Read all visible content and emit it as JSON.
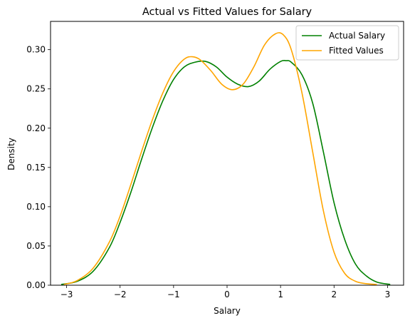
{
  "chart_data": {
    "type": "line",
    "title": "Actual vs Fitted Values for Salary",
    "xlabel": "Salary",
    "ylabel": "Density",
    "xlim": [
      -3.3,
      3.3
    ],
    "ylim": [
      0.0,
      0.336
    ],
    "x_ticks": [
      -3,
      -2,
      -1,
      0,
      1,
      2,
      3
    ],
    "x_tick_labels": [
      "−3",
      "−2",
      "−1",
      "0",
      "1",
      "2",
      "3"
    ],
    "y_ticks": [
      0.0,
      0.05,
      0.1,
      0.15,
      0.2,
      0.25,
      0.3
    ],
    "y_tick_labels": [
      "0.00",
      "0.05",
      "0.10",
      "0.15",
      "0.20",
      "0.25",
      "0.30"
    ],
    "grid": false,
    "legend_position": "upper right",
    "series": [
      {
        "name": "Actual Salary",
        "color": "#008000",
        "x": [
          -3.1,
          -2.8,
          -2.5,
          -2.2,
          -2.0,
          -1.8,
          -1.6,
          -1.4,
          -1.2,
          -1.0,
          -0.8,
          -0.6,
          -0.4,
          -0.2,
          0.0,
          0.2,
          0.4,
          0.6,
          0.8,
          1.0,
          1.1,
          1.2,
          1.4,
          1.6,
          1.8,
          2.0,
          2.2,
          2.4,
          2.6,
          2.8,
          3.05
        ],
        "values": [
          0.001,
          0.005,
          0.018,
          0.048,
          0.08,
          0.118,
          0.16,
          0.2,
          0.235,
          0.262,
          0.278,
          0.284,
          0.285,
          0.278,
          0.265,
          0.256,
          0.253,
          0.26,
          0.275,
          0.285,
          0.286,
          0.284,
          0.268,
          0.232,
          0.17,
          0.105,
          0.058,
          0.027,
          0.012,
          0.004,
          0.001
        ]
      },
      {
        "name": "Fitted Values",
        "color": "#FFA500",
        "x": [
          -3.05,
          -2.8,
          -2.5,
          -2.2,
          -2.0,
          -1.8,
          -1.6,
          -1.4,
          -1.2,
          -1.0,
          -0.8,
          -0.65,
          -0.5,
          -0.3,
          -0.1,
          0.1,
          0.3,
          0.5,
          0.7,
          0.9,
          1.05,
          1.2,
          1.4,
          1.6,
          1.8,
          2.0,
          2.2,
          2.4,
          2.6,
          2.8
        ],
        "values": [
          0.001,
          0.006,
          0.022,
          0.055,
          0.088,
          0.128,
          0.17,
          0.21,
          0.245,
          0.272,
          0.288,
          0.291,
          0.287,
          0.273,
          0.256,
          0.249,
          0.256,
          0.278,
          0.306,
          0.32,
          0.319,
          0.3,
          0.245,
          0.17,
          0.095,
          0.042,
          0.015,
          0.005,
          0.002,
          0.001
        ]
      }
    ]
  }
}
